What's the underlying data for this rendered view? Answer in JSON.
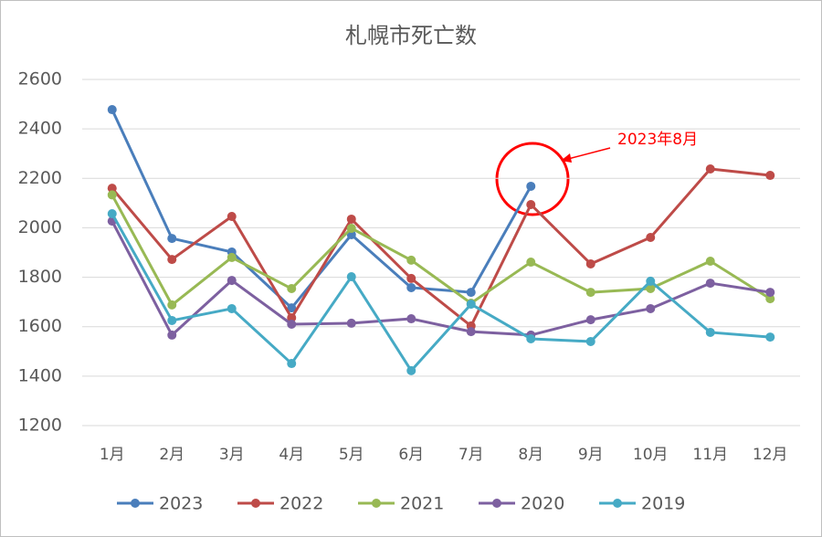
{
  "chart_data": {
    "type": "line",
    "title": "札幌市死亡数",
    "categories": [
      "1月",
      "2月",
      "3月",
      "4月",
      "5月",
      "6月",
      "7月",
      "8月",
      "9月",
      "10月",
      "11月",
      "12月"
    ],
    "series": [
      {
        "name": "2023",
        "color": "#4a7ebb",
        "values": [
          2478,
          1957,
          1902,
          1676,
          1972,
          1758,
          1739,
          2168,
          null,
          null,
          null,
          null
        ]
      },
      {
        "name": "2022",
        "color": "#be4b48",
        "values": [
          2160,
          1872,
          2046,
          1636,
          2035,
          1795,
          1603,
          2094,
          1854,
          1961,
          2238,
          2212
        ]
      },
      {
        "name": "2021",
        "color": "#98b954",
        "values": [
          2133,
          1688,
          1880,
          1754,
          1998,
          1869,
          1695,
          1861,
          1739,
          1754,
          1865,
          1713
        ]
      },
      {
        "name": "2020",
        "color": "#7d60a0",
        "values": [
          2027,
          1566,
          1787,
          1610,
          1614,
          1632,
          1580,
          1566,
          1628,
          1673,
          1776,
          1739
        ]
      },
      {
        "name": "2019",
        "color": "#46aac5",
        "values": [
          2057,
          1625,
          1673,
          1451,
          1802,
          1422,
          1691,
          1551,
          1540,
          1784,
          1577,
          1558
        ]
      }
    ],
    "ylim": [
      1200,
      2600
    ],
    "yticks": [
      1200,
      1400,
      1600,
      1800,
      2000,
      2200,
      2400,
      2600
    ],
    "grid": true,
    "legend": "bottom",
    "annotations": [
      {
        "text": "2023年8月",
        "color": "#ff0000"
      }
    ]
  }
}
